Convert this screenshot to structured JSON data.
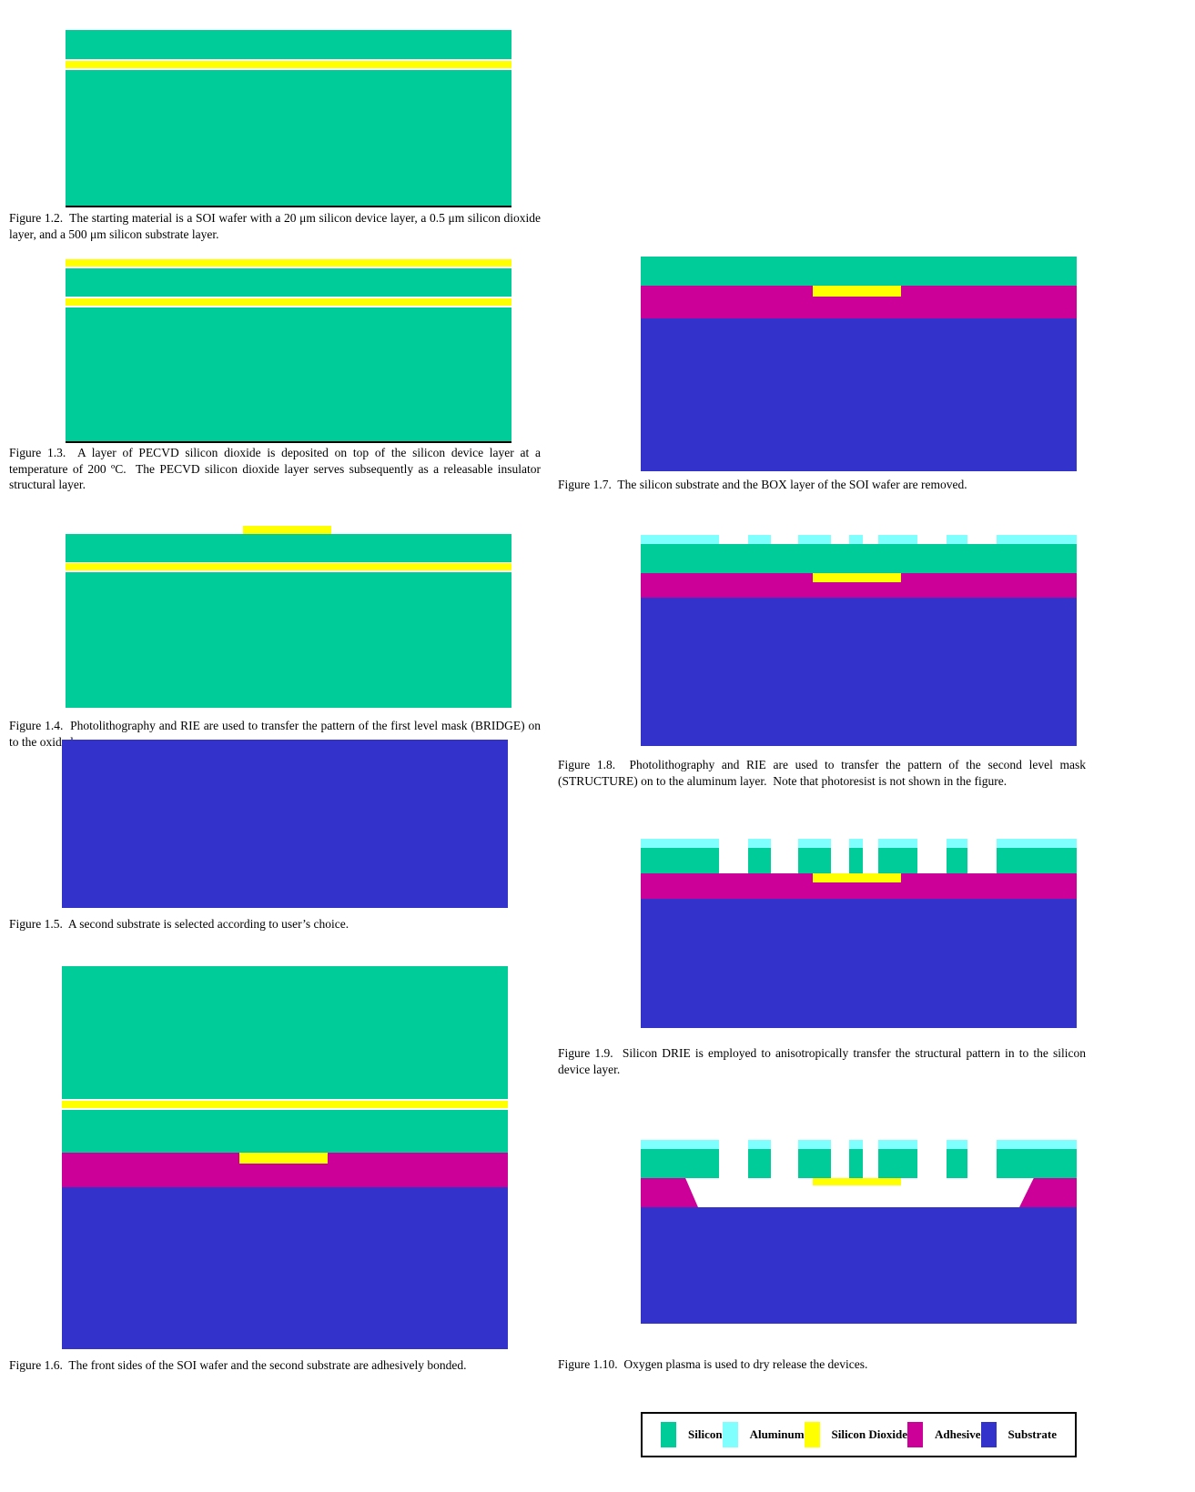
{
  "colors": {
    "silicon": "#00cc99",
    "aluminum": "#80ffff",
    "silicon_dioxide": "#ffff00",
    "adhesive": "#cc0099",
    "substrate": "#3333cc",
    "baseline": "#000000"
  },
  "figures": [
    {
      "id": "Figure 1.2",
      "caption": "Figure 1.2.  The starting material is a SOI wafer with a 20 μm silicon device layer, a 0.5 μm silicon dioxide layer, and a 500 μm silicon substrate layer."
    },
    {
      "id": "Figure 1.3",
      "caption": "Figure 1.3.  A layer of PECVD silicon dioxide is deposited on top of the silicon device layer at a temperature of 200 ºC.  The PECVD silicon dioxide layer serves subsequently as a releasable insulator structural layer."
    },
    {
      "id": "Figure 1.4",
      "caption": "Figure 1.4.  Photolithography and RIE are used to transfer the pattern of the first level mask (BRIDGE) on to the oxide layer."
    },
    {
      "id": "Figure 1.5",
      "caption": "Figure 1.5.  A second substrate is selected according to user’s choice."
    },
    {
      "id": "Figure 1.6",
      "caption": "Figure 1.6.  The front sides of the SOI wafer and the second substrate are adhesively bonded."
    },
    {
      "id": "Figure 1.7",
      "caption": "Figure 1.7.  The silicon substrate and the BOX layer of the SOI wafer are removed."
    },
    {
      "id": "Figure 1.8",
      "caption": "Figure 1.8.  Photolithography and RIE are used to transfer the pattern of the second level mask (STRUCTURE) on to the aluminum layer.  Note that photoresist is not shown in the figure."
    },
    {
      "id": "Figure 1.9",
      "caption": "Figure 1.9.  Silicon DRIE is employed to anisotropically transfer the structural pattern in to the silicon device layer."
    },
    {
      "id": "Figure 1.10",
      "caption": "Figure 1.10.  Oxygen plasma is used to dry release the devices."
    }
  ],
  "legend": {
    "items": [
      {
        "label": "Silicon",
        "color": "#00cc99"
      },
      {
        "label": "Aluminum",
        "color": "#80ffff"
      },
      {
        "label": "Silicon Dioxide",
        "color": "#ffff00"
      },
      {
        "label": "Adhesive",
        "color": "#cc0099"
      },
      {
        "label": "Substrate",
        "color": "#3333cc"
      }
    ]
  }
}
